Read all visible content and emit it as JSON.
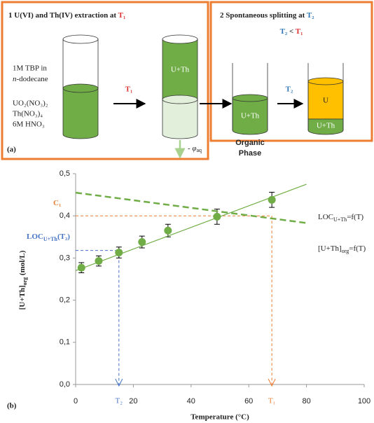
{
  "diagram": {
    "panel_label": "(a)",
    "step1": {
      "title": "1 U(VI) and Th(IV) extraction at ",
      "temp": "T₁"
    },
    "step2": {
      "title": "2 Spontaneous splitting at ",
      "temp": "T₂"
    },
    "condition": {
      "left": "T₂",
      "op": " < ",
      "right": "T₁"
    },
    "organic": {
      "line1": "1M TBP in",
      "italic": "n",
      "rest": "-dodecane"
    },
    "aqueous": [
      "UO₂(NO₃)₂",
      "Th(NO₃)₄",
      "6M HNO₃"
    ],
    "arrow1_label": "T₁",
    "arrow2_label": "T₂",
    "tube2_label": "U+Th",
    "volume_change": {
      "main": "- φ",
      "sub": "aq"
    },
    "tube3_label": "U+Th",
    "phase_label": [
      "Organic",
      "Phase"
    ],
    "tube4_top": "U",
    "tube4_bottom": "U+Th"
  },
  "chart_data": {
    "type": "scatter",
    "panel_label": "(b)",
    "x_label": "Temperature (°C)",
    "y_label": {
      "main": "[U+Th]",
      "sub": "org",
      "after": " (mol/L)"
    },
    "xlim": [
      0,
      100
    ],
    "xticks": [
      0,
      20,
      40,
      60,
      80,
      100
    ],
    "ylim": [
      0,
      0.5
    ],
    "yticks": [
      {
        "value": 0,
        "label": "0,0"
      },
      {
        "value": 0.1,
        "label": "0,1"
      },
      {
        "value": 0.2,
        "label": "0,2"
      },
      {
        "value": 0.3,
        "label": "0,3"
      },
      {
        "value": 0.4,
        "label": "0,4"
      },
      {
        "value": 0.5,
        "label": "0,5"
      }
    ],
    "series": [
      {
        "type": "scatter",
        "color": "#70ad47",
        "x": [
          2,
          8,
          15,
          23,
          32,
          49,
          68
        ],
        "values": [
          0.277,
          0.293,
          0.313,
          0.338,
          0.365,
          0.398,
          0.438
        ],
        "errors": [
          0.012,
          0.012,
          0.013,
          0.014,
          0.015,
          0.018,
          0.018
        ]
      },
      {
        "type": "line",
        "color": "#70ad47",
        "x": [
          0,
          80
        ],
        "values": [
          0.27,
          0.475
        ],
        "label": {
          "main": "LOC",
          "sub": "U+Th",
          "after": "=f(T)"
        }
      },
      {
        "type": "line",
        "dashed": true,
        "color": "#70ad47",
        "x": [
          0,
          80
        ],
        "values": [
          0.455,
          0.383
        ],
        "label": {
          "main": "[U+Th]",
          "sub": "org",
          "after": "=f(T)"
        }
      }
    ],
    "reference_lines": [
      {
        "x": 68,
        "y": 0.4,
        "color": "#ed7d31",
        "y_label": {
          "main": "C₁"
        },
        "x_label": "T₁"
      },
      {
        "x": 15,
        "y": 0.318,
        "color": "#4472c4",
        "y_label": {
          "main": "LOC",
          "sub": "U+Th",
          "after": "(T₂)"
        },
        "x_label": "T₂"
      }
    ]
  }
}
